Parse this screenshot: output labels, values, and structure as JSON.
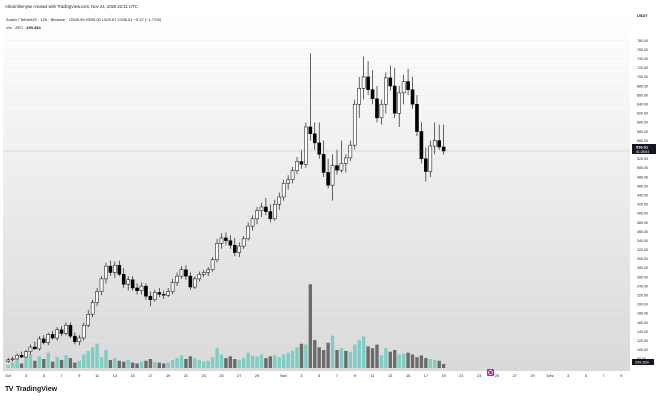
{
  "header": {
    "credit": "Altcointhenyse created with TradingView.com, Nov 24, 2025 22:31 UTC",
    "symbol": "Zcash / TetherUS · 12h · Binance",
    "ohlc": "O545.95  H595.00  L529.67  C536.61  −9.37 (−1.72%)",
    "volume_label": "Vol · ZEC",
    "volume_value": "299.354"
  },
  "axis": {
    "currency": "USDT",
    "last_price": "536.61",
    "countdown": "01:28:54",
    "volume_tag": "299.354"
  },
  "branding": {
    "logo": "TV",
    "name": "TradingView"
  },
  "colors": {
    "up": "#ffffff",
    "down": "#000000",
    "vol_up": "#7ecdc4",
    "vol_down": "#6b6b6b",
    "grid": "#e8e8e8"
  },
  "chart_data": {
    "type": "candlestick",
    "ylim": [
      60,
      790
    ],
    "yticks": [
      80,
      100,
      120,
      140,
      160,
      180,
      200,
      220,
      240,
      260,
      280,
      300,
      320,
      340,
      360,
      380,
      400,
      420,
      440,
      460,
      480,
      500,
      520,
      540,
      560,
      580,
      600,
      620,
      640,
      660,
      680,
      700,
      720,
      740,
      760,
      780
    ],
    "xticks": [
      {
        "i": 0,
        "label": "Oct"
      },
      {
        "i": 4,
        "label": "3"
      },
      {
        "i": 8,
        "label": "5"
      },
      {
        "i": 12,
        "label": "7"
      },
      {
        "i": 16,
        "label": "9"
      },
      {
        "i": 20,
        "label": "11"
      },
      {
        "i": 24,
        "label": "13"
      },
      {
        "i": 28,
        "label": "15"
      },
      {
        "i": 32,
        "label": "17"
      },
      {
        "i": 36,
        "label": "19"
      },
      {
        "i": 40,
        "label": "21"
      },
      {
        "i": 44,
        "label": "23"
      },
      {
        "i": 48,
        "label": "25"
      },
      {
        "i": 52,
        "label": "27"
      },
      {
        "i": 56,
        "label": "29"
      },
      {
        "i": 62,
        "label": "Nov"
      },
      {
        "i": 66,
        "label": "3"
      },
      {
        "i": 70,
        "label": "5"
      },
      {
        "i": 74,
        "label": "7"
      },
      {
        "i": 78,
        "label": "9"
      },
      {
        "i": 82,
        "label": "11"
      },
      {
        "i": 86,
        "label": "13"
      },
      {
        "i": 90,
        "label": "15"
      },
      {
        "i": 94,
        "label": "17"
      },
      {
        "i": 98,
        "label": "19"
      },
      {
        "i": 102,
        "label": "21"
      },
      {
        "i": 106,
        "label": "23"
      },
      {
        "i": 110,
        "label": "25"
      },
      {
        "i": 114,
        "label": "27"
      },
      {
        "i": 118,
        "label": "29"
      },
      {
        "i": 122,
        "label": "Dec"
      },
      {
        "i": 126,
        "label": "3"
      },
      {
        "i": 130,
        "label": "5"
      },
      {
        "i": 134,
        "label": "7"
      },
      {
        "i": 138,
        "label": "9"
      }
    ],
    "total_slots": 140,
    "candles": [
      [
        75,
        82,
        72,
        78
      ],
      [
        78,
        85,
        74,
        80
      ],
      [
        80,
        92,
        78,
        88
      ],
      [
        88,
        96,
        82,
        84
      ],
      [
        84,
        100,
        82,
        96
      ],
      [
        96,
        112,
        90,
        106
      ],
      [
        106,
        118,
        100,
        102
      ],
      [
        102,
        130,
        98,
        124
      ],
      [
        124,
        132,
        112,
        116
      ],
      [
        116,
        138,
        110,
        134
      ],
      [
        134,
        142,
        122,
        126
      ],
      [
        126,
        150,
        120,
        144
      ],
      [
        144,
        152,
        130,
        136
      ],
      [
        136,
        160,
        132,
        154
      ],
      [
        154,
        160,
        126,
        130
      ],
      [
        130,
        138,
        112,
        118
      ],
      [
        118,
        132,
        110,
        126
      ],
      [
        126,
        160,
        120,
        154
      ],
      [
        154,
        188,
        150,
        178
      ],
      [
        178,
        210,
        172,
        204
      ],
      [
        204,
        236,
        196,
        228
      ],
      [
        228,
        262,
        220,
        256
      ],
      [
        256,
        292,
        246,
        284
      ],
      [
        284,
        296,
        262,
        270
      ],
      [
        270,
        294,
        258,
        286
      ],
      [
        286,
        296,
        262,
        266
      ],
      [
        266,
        280,
        236,
        244
      ],
      [
        244,
        262,
        230,
        254
      ],
      [
        254,
        262,
        230,
        236
      ],
      [
        236,
        246,
        222,
        230
      ],
      [
        230,
        248,
        222,
        240
      ],
      [
        240,
        246,
        210,
        218
      ],
      [
        218,
        228,
        196,
        210
      ],
      [
        210,
        232,
        206,
        226
      ],
      [
        226,
        236,
        216,
        222
      ],
      [
        222,
        230,
        212,
        220
      ],
      [
        220,
        236,
        216,
        228
      ],
      [
        228,
        256,
        222,
        248
      ],
      [
        248,
        270,
        240,
        262
      ],
      [
        262,
        284,
        256,
        276
      ],
      [
        276,
        286,
        254,
        262
      ],
      [
        262,
        270,
        232,
        238
      ],
      [
        238,
        262,
        234,
        256
      ],
      [
        256,
        272,
        250,
        266
      ],
      [
        266,
        276,
        260,
        270
      ],
      [
        270,
        282,
        262,
        276
      ],
      [
        276,
        304,
        272,
        298
      ],
      [
        298,
        344,
        292,
        334
      ],
      [
        334,
        356,
        322,
        346
      ],
      [
        346,
        358,
        330,
        340
      ],
      [
        340,
        352,
        322,
        330
      ],
      [
        330,
        346,
        306,
        314
      ],
      [
        314,
        336,
        304,
        328
      ],
      [
        328,
        350,
        322,
        344
      ],
      [
        344,
        380,
        340,
        372
      ],
      [
        372,
        396,
        362,
        388
      ],
      [
        388,
        414,
        376,
        406
      ],
      [
        406,
        424,
        392,
        414
      ],
      [
        414,
        434,
        396,
        404
      ],
      [
        404,
        420,
        380,
        388
      ],
      [
        388,
        430,
        384,
        420
      ],
      [
        420,
        446,
        408,
        436
      ],
      [
        436,
        474,
        428,
        466
      ],
      [
        466,
        484,
        452,
        474
      ],
      [
        474,
        502,
        466,
        494
      ],
      [
        494,
        524,
        486,
        514
      ],
      [
        514,
        540,
        498,
        508
      ],
      [
        508,
        600,
        500,
        590
      ],
      [
        590,
        752,
        560,
        575
      ],
      [
        575,
        600,
        540,
        555
      ],
      [
        555,
        600,
        520,
        530
      ],
      [
        530,
        560,
        480,
        490
      ],
      [
        490,
        520,
        455,
        462
      ],
      [
        462,
        530,
        428,
        505
      ],
      [
        505,
        540,
        485,
        495
      ],
      [
        495,
        560,
        490,
        510
      ],
      [
        510,
        530,
        490,
        522
      ],
      [
        522,
        560,
        515,
        550
      ],
      [
        550,
        650,
        540,
        640
      ],
      [
        640,
        700,
        610,
        675
      ],
      [
        675,
        745,
        650,
        700
      ],
      [
        700,
        735,
        660,
        672
      ],
      [
        672,
        715,
        640,
        652
      ],
      [
        652,
        680,
        600,
        610
      ],
      [
        610,
        650,
        595,
        640
      ],
      [
        640,
        710,
        620,
        698
      ],
      [
        698,
        725,
        670,
        680
      ],
      [
        680,
        720,
        610,
        620
      ],
      [
        620,
        680,
        590,
        665
      ],
      [
        665,
        705,
        640,
        690
      ],
      [
        690,
        718,
        660,
        672
      ],
      [
        672,
        700,
        630,
        640
      ],
      [
        640,
        660,
        570,
        580
      ],
      [
        580,
        600,
        510,
        520
      ],
      [
        520,
        545,
        470,
        492
      ],
      [
        492,
        560,
        480,
        548
      ],
      [
        548,
        600,
        530,
        560
      ],
      [
        560,
        595,
        540,
        546
      ],
      [
        546,
        595,
        529,
        537
      ]
    ],
    "volume_ylim": [
      0,
      200
    ],
    "volumes": [
      [
        6,
        1
      ],
      [
        12,
        1
      ],
      [
        18,
        1
      ],
      [
        10,
        0
      ],
      [
        22,
        1
      ],
      [
        30,
        1
      ],
      [
        16,
        0
      ],
      [
        26,
        1
      ],
      [
        20,
        0
      ],
      [
        34,
        1
      ],
      [
        14,
        0
      ],
      [
        24,
        1
      ],
      [
        18,
        0
      ],
      [
        28,
        1
      ],
      [
        22,
        0
      ],
      [
        12,
        0
      ],
      [
        16,
        1
      ],
      [
        30,
        1
      ],
      [
        38,
        1
      ],
      [
        46,
        1
      ],
      [
        54,
        1
      ],
      [
        24,
        1
      ],
      [
        40,
        1
      ],
      [
        18,
        0
      ],
      [
        22,
        1
      ],
      [
        16,
        0
      ],
      [
        14,
        0
      ],
      [
        18,
        1
      ],
      [
        12,
        0
      ],
      [
        10,
        0
      ],
      [
        14,
        1
      ],
      [
        16,
        0
      ],
      [
        20,
        0
      ],
      [
        14,
        1
      ],
      [
        12,
        0
      ],
      [
        10,
        0
      ],
      [
        12,
        1
      ],
      [
        18,
        1
      ],
      [
        22,
        1
      ],
      [
        28,
        1
      ],
      [
        20,
        0
      ],
      [
        26,
        0
      ],
      [
        22,
        1
      ],
      [
        18,
        1
      ],
      [
        14,
        1
      ],
      [
        16,
        1
      ],
      [
        24,
        1
      ],
      [
        44,
        1
      ],
      [
        30,
        1
      ],
      [
        22,
        0
      ],
      [
        26,
        0
      ],
      [
        20,
        0
      ],
      [
        18,
        1
      ],
      [
        22,
        1
      ],
      [
        34,
        1
      ],
      [
        28,
        1
      ],
      [
        26,
        1
      ],
      [
        30,
        1
      ],
      [
        22,
        0
      ],
      [
        26,
        0
      ],
      [
        28,
        1
      ],
      [
        24,
        1
      ],
      [
        30,
        1
      ],
      [
        34,
        1
      ],
      [
        38,
        1
      ],
      [
        46,
        1
      ],
      [
        54,
        0
      ],
      [
        52,
        1
      ],
      [
        186,
        0
      ],
      [
        62,
        0
      ],
      [
        46,
        0
      ],
      [
        40,
        0
      ],
      [
        56,
        0
      ],
      [
        72,
        1
      ],
      [
        40,
        0
      ],
      [
        44,
        1
      ],
      [
        38,
        0
      ],
      [
        36,
        1
      ],
      [
        52,
        1
      ],
      [
        62,
        1
      ],
      [
        70,
        1
      ],
      [
        48,
        0
      ],
      [
        44,
        0
      ],
      [
        52,
        0
      ],
      [
        28,
        1
      ],
      [
        44,
        1
      ],
      [
        36,
        0
      ],
      [
        40,
        0
      ],
      [
        30,
        1
      ],
      [
        32,
        1
      ],
      [
        34,
        0
      ],
      [
        30,
        0
      ],
      [
        24,
        0
      ],
      [
        28,
        0
      ],
      [
        22,
        0
      ],
      [
        20,
        1
      ],
      [
        18,
        1
      ],
      [
        16,
        0
      ],
      [
        9,
        0
      ]
    ]
  }
}
